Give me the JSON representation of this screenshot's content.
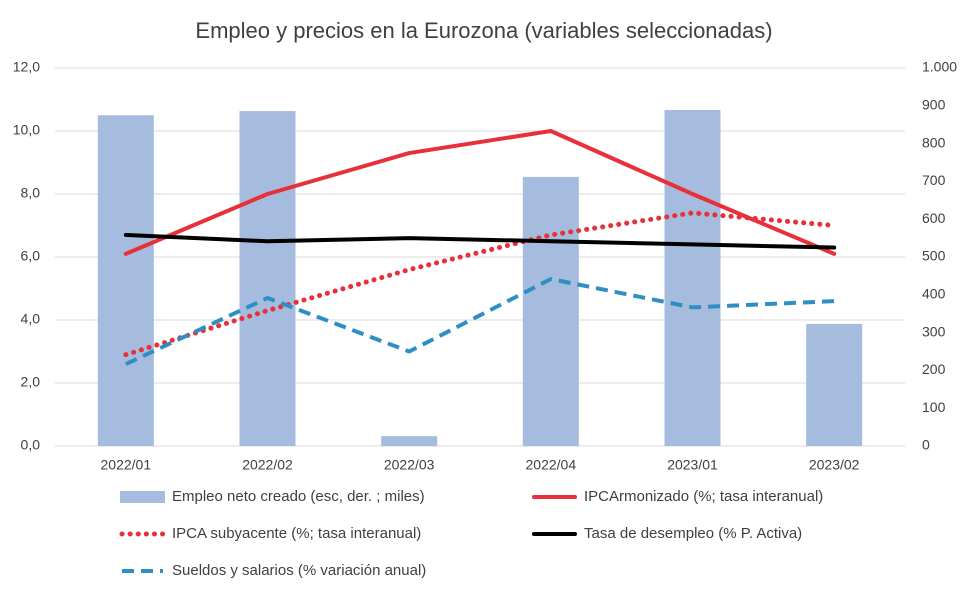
{
  "chart_data": {
    "type": "combo",
    "title": "Empleo y precios en la Eurozona (variables seleccionadas)",
    "categories": [
      "2022/01",
      "2022/02",
      "2022/03",
      "2022/04",
      "2023/01",
      "2023/02"
    ],
    "series": [
      {
        "name": "Empleo neto creado (esc, der. ; miles)",
        "type": "bar",
        "axis": "y2",
        "color": "#a5bcdf",
        "values": [
          875,
          886,
          26,
          712,
          889,
          323
        ]
      },
      {
        "name": "IPCArmonizado (%; tasa interanual)",
        "type": "line",
        "dash": "solid",
        "color": "#e8303a",
        "values": [
          6.1,
          8.0,
          9.3,
          10.0,
          8.0,
          6.1
        ]
      },
      {
        "name": "IPCA subyacente (%; tasa interanual)",
        "type": "line",
        "dash": "dotted",
        "color": "#e8303a",
        "values": [
          2.9,
          4.3,
          5.6,
          6.7,
          7.4,
          7.0
        ]
      },
      {
        "name": "Tasa de desempleo (% P. Activa)",
        "type": "line",
        "dash": "solid",
        "color": "#000000",
        "values": [
          6.7,
          6.5,
          6.6,
          6.5,
          6.4,
          6.3
        ]
      },
      {
        "name": "Sueldos y salarios (% variación anual)",
        "type": "line",
        "dash": "dashed",
        "color": "#2e8fc4",
        "values": [
          2.6,
          4.7,
          3.0,
          5.3,
          4.4,
          4.6
        ]
      }
    ],
    "ylim": [
      0,
      12
    ],
    "yticks": [
      {
        "value": 0,
        "label": "0,0"
      },
      {
        "value": 2,
        "label": "2,0"
      },
      {
        "value": 4,
        "label": "4,0"
      },
      {
        "value": 6,
        "label": "6,0"
      },
      {
        "value": 8,
        "label": "8,0"
      },
      {
        "value": 10,
        "label": "10,0"
      },
      {
        "value": 12,
        "label": "12,0"
      }
    ],
    "y2lim": [
      0,
      1000
    ],
    "y2ticks": [
      0,
      100,
      200,
      300,
      400,
      500,
      600,
      700,
      800,
      900,
      {
        "value": 1000,
        "label": "1.000"
      }
    ],
    "grid": true
  }
}
